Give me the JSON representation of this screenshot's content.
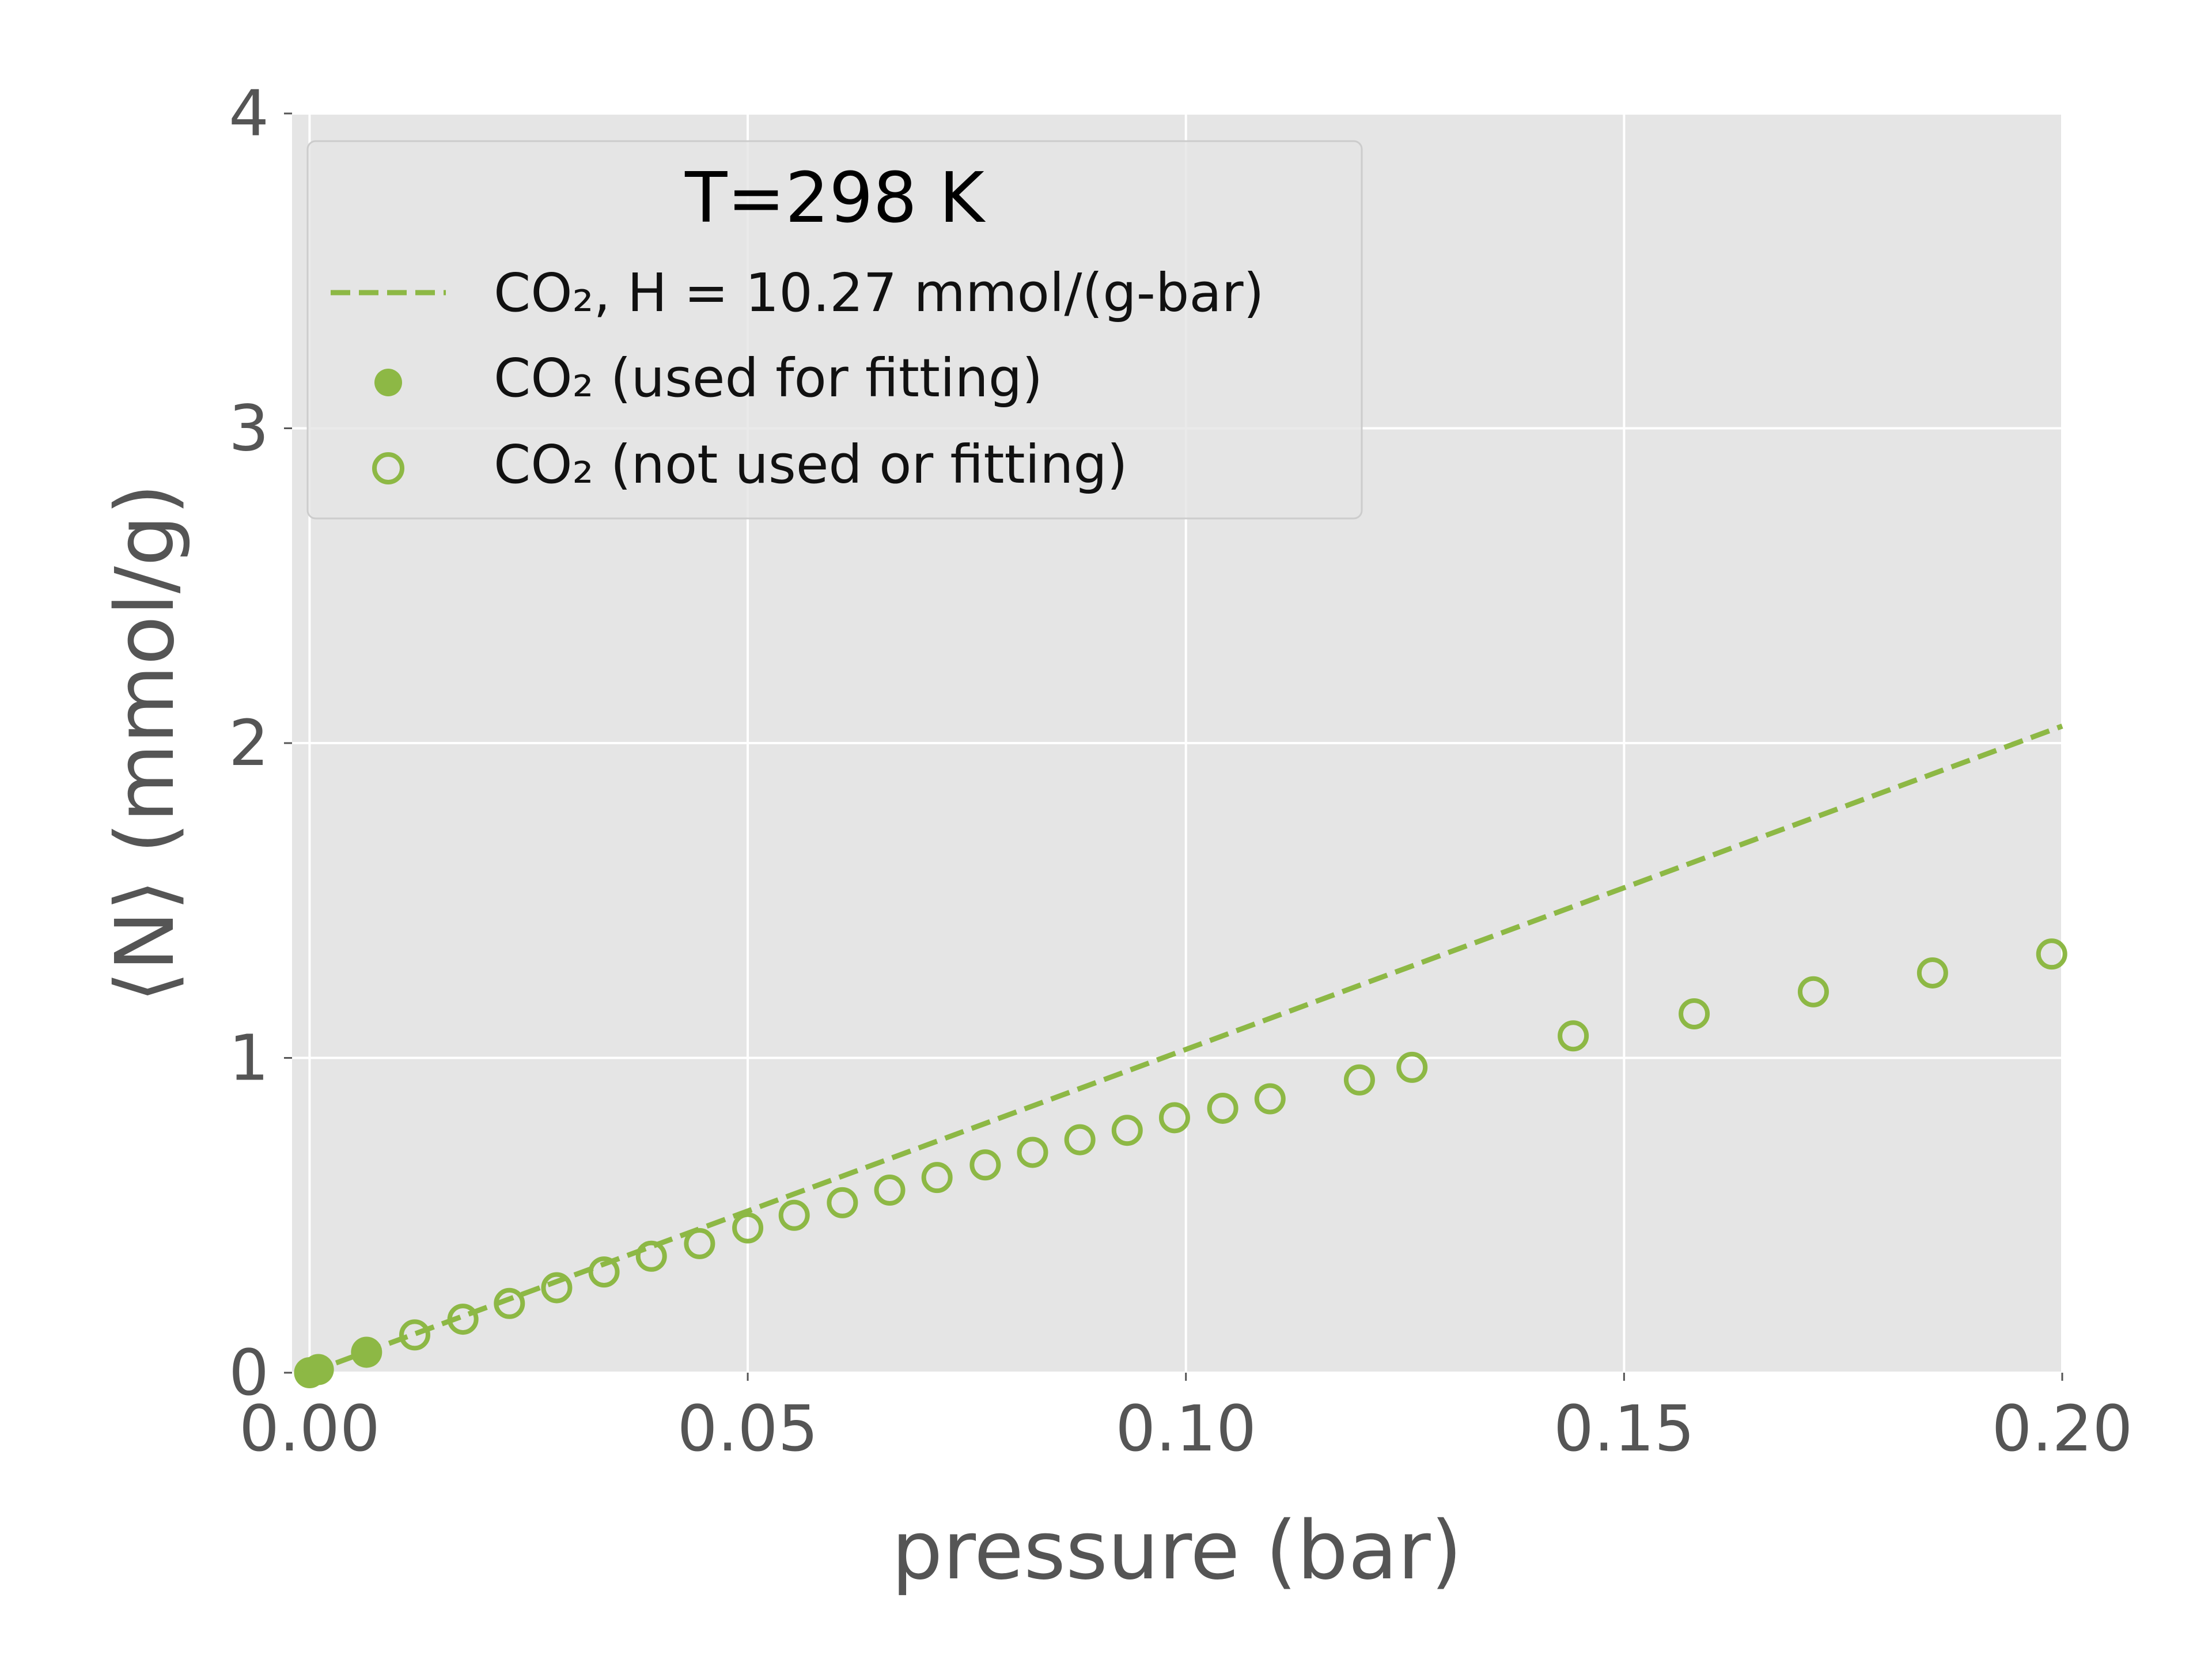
{
  "chart_data": {
    "type": "scatter",
    "title": "",
    "xlabel": "pressure (bar)",
    "ylabel": "⟨N⟩ (mmol/g)",
    "xlim": [
      -0.002,
      0.2
    ],
    "ylim": [
      0,
      4
    ],
    "xticks": [
      "0.00",
      "0.05",
      "0.10",
      "0.15",
      "0.20"
    ],
    "xtick_values": [
      0.0,
      0.05,
      0.1,
      0.15,
      0.2
    ],
    "yticks": [
      "0",
      "1",
      "2",
      "3",
      "4"
    ],
    "ytick_values": [
      0,
      1,
      2,
      3,
      4
    ],
    "grid": true,
    "legend": {
      "title": "T=298 K",
      "placement": "top-left",
      "entries": [
        "CO₂, H = 10.27 mmol/(g-bar)",
        "CO₂ (used for fitting)",
        "CO₂ (not used or fitting)"
      ]
    },
    "colors": {
      "series": "#8db845",
      "background": "#e5e5e5",
      "grid": "#ffffff"
    },
    "series": [
      {
        "name": "CO₂, H = 10.27 mmol/(g-bar)",
        "kind": "dashed-line",
        "henry_coefficient": 10.27,
        "x": [
          0.0,
          0.2
        ],
        "y": [
          0.0,
          2.054
        ]
      },
      {
        "name": "CO₂ (used for fitting)",
        "kind": "filled-markers",
        "x": [
          0.0,
          0.001,
          0.0065
        ],
        "y": [
          0.0,
          0.01,
          0.065
        ]
      },
      {
        "name": "CO₂ (not used or fitting)",
        "kind": "open-markers",
        "x": [
          0.012,
          0.0175,
          0.0228,
          0.0282,
          0.0336,
          0.039,
          0.0445,
          0.05,
          0.0553,
          0.0608,
          0.0662,
          0.0716,
          0.0771,
          0.0825,
          0.0879,
          0.0933,
          0.0987,
          0.1042,
          0.1096,
          0.1198,
          0.1258,
          0.1442,
          0.158,
          0.1716,
          0.1852,
          0.1988
        ],
        "y": [
          0.12,
          0.17,
          0.22,
          0.27,
          0.32,
          0.37,
          0.41,
          0.46,
          0.5,
          0.54,
          0.58,
          0.62,
          0.66,
          0.7,
          0.74,
          0.77,
          0.81,
          0.84,
          0.87,
          0.93,
          0.97,
          1.07,
          1.14,
          1.21,
          1.27,
          1.33
        ]
      }
    ]
  }
}
